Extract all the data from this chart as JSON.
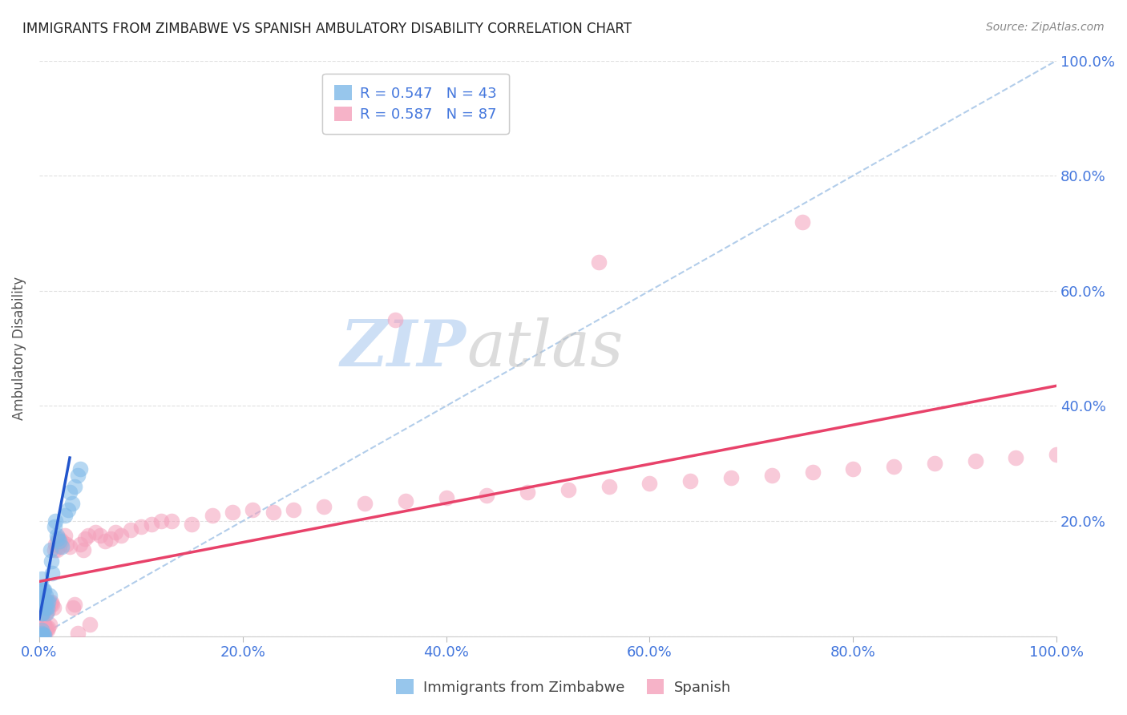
{
  "title": "IMMIGRANTS FROM ZIMBABWE VS SPANISH AMBULATORY DISABILITY CORRELATION CHART",
  "source": "Source: ZipAtlas.com",
  "ylabel": "Ambulatory Disability",
  "legend_r1": "R = 0.547",
  "legend_n1": "N = 43",
  "legend_r2": "R = 0.587",
  "legend_n2": "N = 87",
  "blue_color": "#7db8e8",
  "pink_color": "#f4a0bb",
  "blue_line_color": "#2255cc",
  "pink_line_color": "#e8426a",
  "dashed_line_color": "#aac8e8",
  "axis_tick_color": "#4477dd",
  "title_color": "#222222",
  "source_color": "#888888",
  "watermark_zip_color": "#cddff5",
  "watermark_atlas_color": "#c0c0c0",
  "blue_scatter_x": [
    0.001,
    0.001,
    0.001,
    0.001,
    0.002,
    0.002,
    0.002,
    0.002,
    0.002,
    0.002,
    0.003,
    0.003,
    0.003,
    0.003,
    0.004,
    0.004,
    0.004,
    0.005,
    0.005,
    0.005,
    0.006,
    0.006,
    0.007,
    0.007,
    0.008,
    0.009,
    0.01,
    0.011,
    0.012,
    0.013,
    0.015,
    0.016,
    0.017,
    0.018,
    0.02,
    0.022,
    0.025,
    0.028,
    0.03,
    0.032,
    0.035,
    0.038,
    0.04
  ],
  "blue_scatter_y": [
    0.001,
    0.003,
    0.055,
    0.08,
    0.001,
    0.005,
    0.01,
    0.04,
    0.06,
    0.1,
    0.002,
    0.04,
    0.06,
    0.08,
    0.003,
    0.055,
    0.08,
    0.003,
    0.06,
    0.08,
    0.05,
    0.07,
    0.04,
    0.06,
    0.05,
    0.06,
    0.07,
    0.15,
    0.13,
    0.11,
    0.19,
    0.2,
    0.175,
    0.17,
    0.165,
    0.155,
    0.21,
    0.22,
    0.25,
    0.23,
    0.26,
    0.28,
    0.29
  ],
  "pink_scatter_x": [
    0.001,
    0.001,
    0.001,
    0.002,
    0.002,
    0.002,
    0.002,
    0.003,
    0.003,
    0.003,
    0.003,
    0.004,
    0.004,
    0.005,
    0.005,
    0.005,
    0.006,
    0.006,
    0.007,
    0.007,
    0.008,
    0.008,
    0.009,
    0.009,
    0.01,
    0.01,
    0.011,
    0.012,
    0.013,
    0.014,
    0.015,
    0.016,
    0.017,
    0.018,
    0.02,
    0.02,
    0.022,
    0.025,
    0.027,
    0.03,
    0.033,
    0.035,
    0.038,
    0.04,
    0.043,
    0.045,
    0.048,
    0.05,
    0.055,
    0.06,
    0.065,
    0.07,
    0.075,
    0.08,
    0.09,
    0.1,
    0.11,
    0.12,
    0.13,
    0.15,
    0.17,
    0.19,
    0.21,
    0.23,
    0.25,
    0.28,
    0.32,
    0.36,
    0.4,
    0.44,
    0.48,
    0.52,
    0.56,
    0.6,
    0.64,
    0.68,
    0.72,
    0.76,
    0.8,
    0.84,
    0.88,
    0.92,
    0.96,
    1.0,
    0.35,
    0.55,
    0.75
  ],
  "pink_scatter_y": [
    0.001,
    0.01,
    0.03,
    0.001,
    0.008,
    0.02,
    0.05,
    0.002,
    0.015,
    0.04,
    0.06,
    0.005,
    0.025,
    0.003,
    0.02,
    0.055,
    0.01,
    0.04,
    0.015,
    0.05,
    0.01,
    0.06,
    0.015,
    0.045,
    0.02,
    0.06,
    0.055,
    0.06,
    0.055,
    0.05,
    0.15,
    0.16,
    0.15,
    0.165,
    0.155,
    0.17,
    0.165,
    0.175,
    0.16,
    0.155,
    0.05,
    0.055,
    0.005,
    0.16,
    0.15,
    0.17,
    0.175,
    0.02,
    0.18,
    0.175,
    0.165,
    0.17,
    0.18,
    0.175,
    0.185,
    0.19,
    0.195,
    0.2,
    0.2,
    0.195,
    0.21,
    0.215,
    0.22,
    0.215,
    0.22,
    0.225,
    0.23,
    0.235,
    0.24,
    0.245,
    0.25,
    0.255,
    0.26,
    0.265,
    0.27,
    0.275,
    0.28,
    0.285,
    0.29,
    0.295,
    0.3,
    0.305,
    0.31,
    0.315,
    0.55,
    0.65,
    0.72
  ],
  "blue_fit_x0": 0.0,
  "blue_fit_x1": 0.03,
  "blue_fit_y0": 0.03,
  "blue_fit_y1": 0.31,
  "pink_fit_x0": 0.0,
  "pink_fit_x1": 1.0,
  "pink_fit_y0": 0.095,
  "pink_fit_y1": 0.435,
  "xlim": [
    0.0,
    1.0
  ],
  "ylim": [
    0.0,
    1.0
  ],
  "background_color": "#ffffff",
  "grid_color": "#e0e0e0"
}
